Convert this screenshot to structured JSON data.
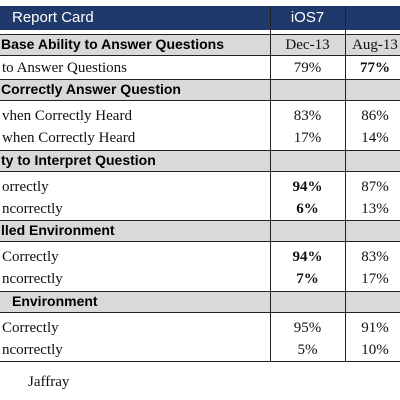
{
  "header": {
    "title": "Report Card",
    "platform": "iOS7"
  },
  "table": {
    "columns": [
      "Dec-13",
      "Aug-13"
    ],
    "sections": [
      {
        "title": "Base Ability to Answer Questions",
        "rows": [
          {
            "label": "to Answer Questions",
            "values": [
              "79%",
              "77%"
            ]
          }
        ]
      },
      {
        "title": "Correctly Answer Question",
        "rows": [
          {
            "label": "vhen Correctly Heard",
            "values": [
              "83%",
              "86%"
            ]
          },
          {
            "label": "when Correctly Heard",
            "values": [
              "17%",
              "14%"
            ]
          }
        ]
      },
      {
        "title": "ty to Interpret Question",
        "rows": [
          {
            "label": "orrectly",
            "values": [
              "94%",
              "87%"
            ]
          },
          {
            "label": "ncorrectly",
            "values": [
              "6%",
              "13%"
            ]
          }
        ]
      },
      {
        "title": "lled Environment",
        "rows": [
          {
            "label": "Correctly",
            "values": [
              "94%",
              "83%"
            ]
          },
          {
            "label": "ncorrectly",
            "values": [
              "7%",
              "17%"
            ]
          }
        ]
      },
      {
        "title": "Environment",
        "rows": [
          {
            "label": "Correctly",
            "values": [
              "95%",
              "91%"
            ]
          },
          {
            "label": "ncorrectly",
            "values": [
              "5%",
              "10%"
            ]
          }
        ]
      }
    ]
  },
  "footer": {
    "text": "Jaffray"
  }
}
